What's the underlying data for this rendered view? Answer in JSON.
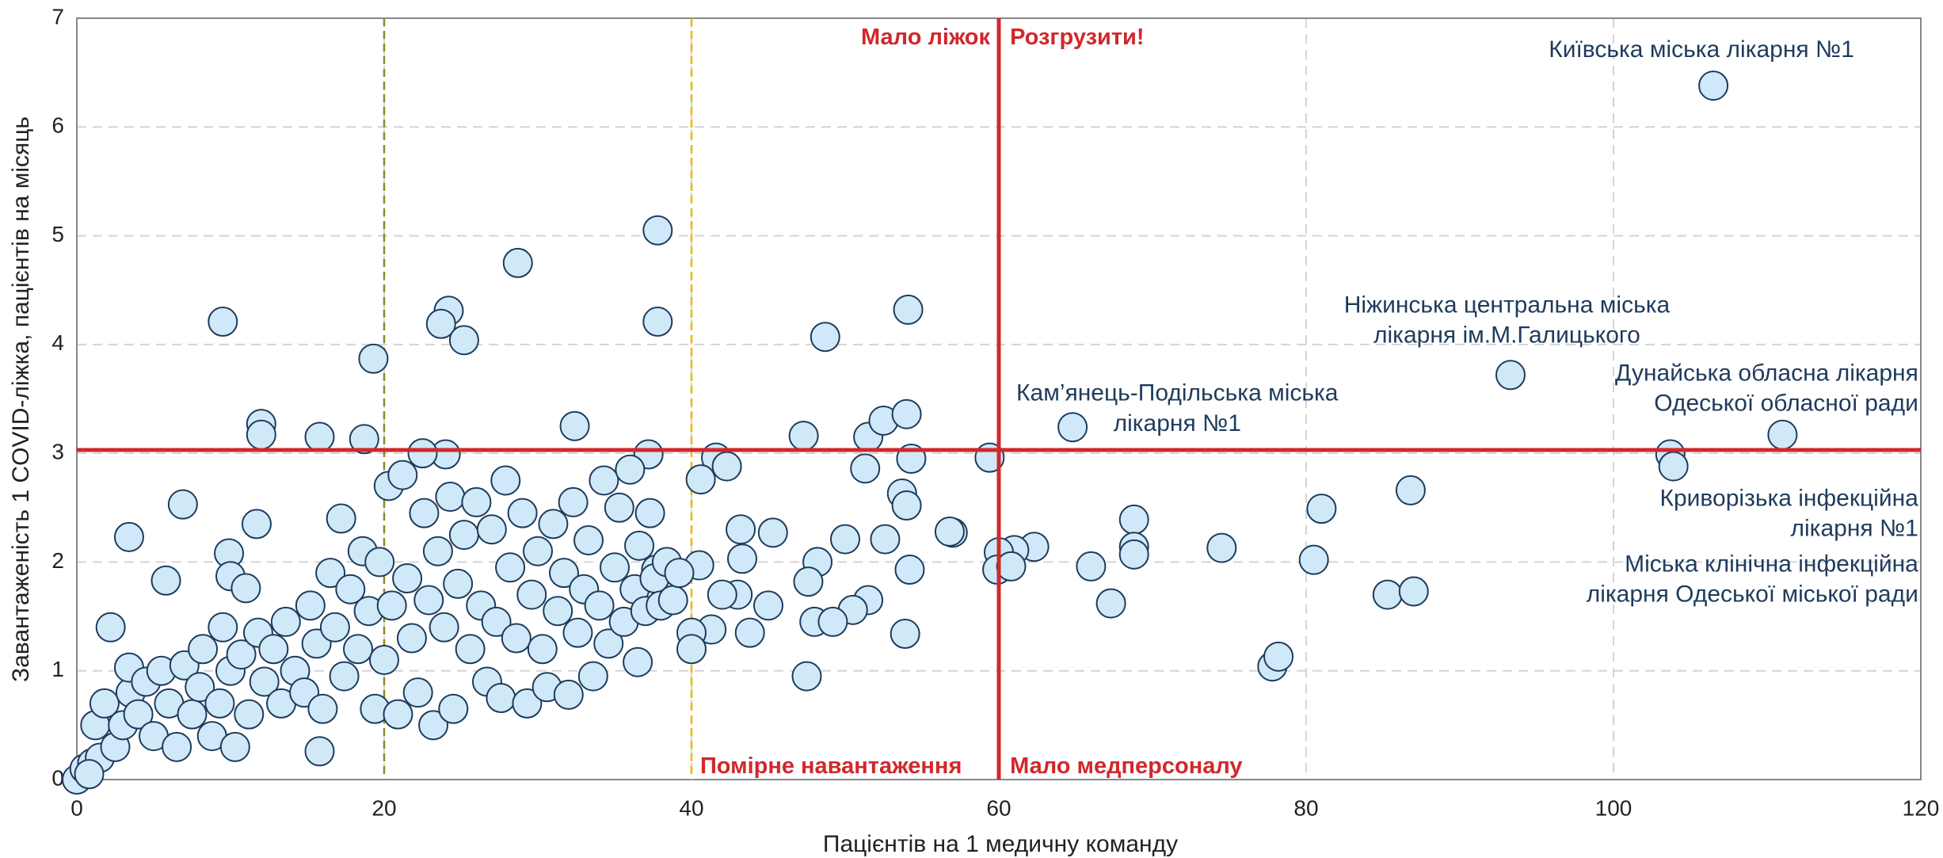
{
  "chart_data": {
    "type": "scatter",
    "xlabel": "Пацієнтів на 1 медичну команду",
    "ylabel": "Завантаженість 1 COVID-ліжка, пацієнтів на місяць",
    "xlim": [
      0,
      120
    ],
    "ylim": [
      0,
      7
    ],
    "xticks": [
      0,
      20,
      40,
      60,
      80,
      100,
      120
    ],
    "yticks": [
      0,
      1,
      2,
      3,
      4,
      5,
      6,
      7
    ],
    "grid": true,
    "vlines": [
      {
        "x": 20,
        "color": "#8a8a2a",
        "style": "dashed"
      },
      {
        "x": 40,
        "color": "#f0b400",
        "style": "dashed"
      },
      {
        "x": 60,
        "color": "#d0282c",
        "style": "solid"
      }
    ],
    "hlines": [
      {
        "y": 3.03,
        "color": "#d0282c",
        "style": "solid"
      }
    ],
    "annotations": [
      {
        "lines": [
          "Мало ліжок"
        ],
        "color": "#d0282c",
        "bold": true
      },
      {
        "lines": [
          "Розгрузити!"
        ],
        "color": "#d0282c",
        "bold": true
      },
      {
        "lines": [
          "Помірне навантаження"
        ],
        "color": "#d0282c",
        "bold": true
      },
      {
        "lines": [
          "Мало медперсоналу"
        ],
        "color": "#d0282c",
        "bold": true
      },
      {
        "lines": [
          "Київська міська лікарня №1"
        ],
        "color": "#1f3b5c",
        "bold": false
      },
      {
        "lines": [
          "Ніжинська центральна міська",
          "лікарня ім.М.Галицького"
        ],
        "color": "#1f3b5c",
        "bold": false
      },
      {
        "lines": [
          "Кам’янець-Подільська міська",
          "лікарня №1"
        ],
        "color": "#1f3b5c",
        "bold": false
      },
      {
        "lines": [
          "Дунайська обласна лікарня",
          "Одеської обласної ради"
        ],
        "color": "#1f3b5c",
        "bold": false
      },
      {
        "lines": [
          "Криворізька інфекційна",
          "лікарня №1"
        ],
        "color": "#1f3b5c",
        "bold": false
      },
      {
        "lines": [
          "Міська клінічна інфекційна",
          "лікарня Одеської міської ради"
        ],
        "color": "#1f3b5c",
        "bold": false
      }
    ],
    "series": [
      {
        "color": "#cfe9f9",
        "edgecolor": "#1f3b5c",
        "x": [
          106.5,
          93.3,
          111,
          103.7,
          103.9,
          86.8,
          81,
          80.5,
          85.3,
          87,
          77.8,
          78.2,
          74.5,
          68.8,
          68.8,
          68.8,
          67.3,
          66,
          62.3,
          61,
          60,
          59.9,
          60.8,
          59.4,
          64.8,
          57,
          56.8,
          54.1,
          48.7,
          37.8,
          37.8,
          28.7,
          24.2,
          23.7,
          25.2,
          19.3,
          9.5,
          12,
          12,
          15.8,
          18.7,
          32.4,
          47.3,
          51.5,
          52.5,
          54,
          54.3,
          37.2,
          24,
          22.5,
          41.6,
          42.3,
          51.3,
          53.7,
          54,
          54.2,
          53.9,
          52.6,
          50,
          51.5,
          50.5,
          48.2,
          48,
          49.2,
          47.6,
          47.5,
          45.3,
          45,
          43.8,
          43.2,
          43.3,
          43,
          41.3,
          42,
          40.6,
          40,
          40,
          40.5,
          37.7,
          36.5,
          6.9,
          3.4,
          11.7,
          9.9,
          10,
          11,
          5.8,
          2.2,
          15.8,
          0,
          0.5,
          1,
          1.5,
          0.8,
          1.2,
          1.8,
          2.5,
          3,
          3.5,
          3.4,
          4,
          4.5,
          5,
          5.5,
          6,
          6.5,
          7,
          7.5,
          8,
          8.2,
          8.8,
          9.3,
          9.5,
          10,
          10.3,
          10.7,
          11.2,
          11.8,
          12.2,
          12.8,
          13.3,
          13.6,
          14.2,
          14.8,
          15.2,
          15.6,
          16,
          16.5,
          16.8,
          17.2,
          17.4,
          17.8,
          18.3,
          18.6,
          19,
          19.4,
          19.7,
          20,
          20.3,
          20.5,
          20.9,
          21.2,
          21.5,
          21.8,
          22.2,
          22.6,
          22.9,
          23.2,
          23.5,
          23.9,
          24.3,
          24.5,
          24.8,
          25.2,
          25.6,
          26,
          26.3,
          26.7,
          27,
          27.3,
          27.6,
          27.9,
          28.2,
          28.6,
          29,
          29.3,
          29.6,
          30,
          30.3,
          30.6,
          31,
          31.3,
          31.7,
          32,
          32.3,
          32.6,
          33,
          33.3,
          33.6,
          34,
          34.3,
          34.6,
          35,
          35.3,
          35.6,
          36,
          36.3,
          36.6,
          37,
          37.3,
          37.6,
          38,
          38.4,
          38.8,
          39.2
        ],
        "y": [
          6.38,
          3.72,
          3.17,
          2.99,
          2.88,
          2.66,
          2.49,
          2.02,
          1.7,
          1.73,
          1.04,
          1.13,
          2.13,
          2.39,
          2.14,
          2.07,
          1.62,
          1.96,
          2.14,
          2.11,
          2.09,
          1.93,
          1.96,
          2.96,
          3.24,
          2.27,
          2.28,
          4.32,
          4.07,
          5.05,
          4.21,
          4.75,
          4.31,
          4.19,
          4.04,
          3.87,
          4.21,
          3.27,
          3.17,
          3.15,
          3.13,
          3.25,
          3.16,
          3.15,
          3.3,
          3.36,
          2.95,
          2.99,
          2.99,
          3.0,
          2.96,
          2.88,
          2.86,
          2.63,
          2.52,
          1.93,
          1.34,
          2.21,
          2.21,
          1.65,
          1.56,
          2.0,
          1.45,
          1.45,
          1.82,
          0.95,
          2.27,
          1.6,
          1.35,
          2.3,
          2.03,
          1.7,
          1.38,
          1.7,
          2.76,
          1.35,
          1.2,
          1.97,
          1.93,
          1.08,
          2.53,
          2.23,
          2.35,
          2.08,
          1.87,
          1.76,
          1.83,
          1.4,
          0.26,
          0,
          0.1,
          0.15,
          0.2,
          0.05,
          0.5,
          0.7,
          0.3,
          0.5,
          0.8,
          1.03,
          0.6,
          0.9,
          0.4,
          1.0,
          0.7,
          0.3,
          1.05,
          0.6,
          0.85,
          1.2,
          0.4,
          0.7,
          1.4,
          1.0,
          0.3,
          1.15,
          0.6,
          1.35,
          0.9,
          1.2,
          0.7,
          1.45,
          1.0,
          0.8,
          1.6,
          1.25,
          0.65,
          1.9,
          1.4,
          2.4,
          0.95,
          1.75,
          1.2,
          2.1,
          1.55,
          0.65,
          2.0,
          1.1,
          2.7,
          1.6,
          0.6,
          2.8,
          1.85,
          1.3,
          0.8,
          2.45,
          1.65,
          0.5,
          2.1,
          1.4,
          2.6,
          0.65,
          1.8,
          2.25,
          1.2,
          2.55,
          1.6,
          0.9,
          2.3,
          1.45,
          0.75,
          2.75,
          1.95,
          1.3,
          2.45,
          0.7,
          1.7,
          2.1,
          1.2,
          0.85,
          2.35,
          1.55,
          1.9,
          0.78,
          2.55,
          1.35,
          1.75,
          2.2,
          0.95,
          1.6,
          2.75,
          1.25,
          1.95,
          2.5,
          1.45,
          2.85,
          1.75,
          2.15,
          1.55,
          2.45,
          1.85,
          1.6,
          2.0,
          1.65,
          1.9
        ]
      }
    ]
  }
}
